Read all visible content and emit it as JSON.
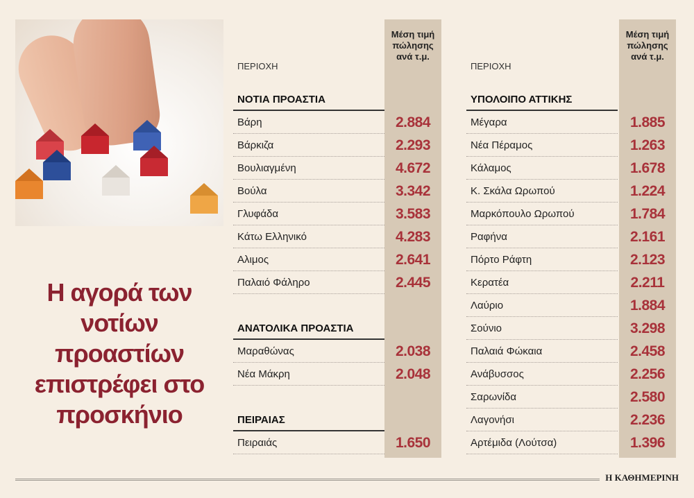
{
  "headline": "Η αγορά των νοτίων προαστίων επιστρέφει στο προσκήνιο",
  "header": {
    "area_label": "ΠΕΡΙΟΧΗ",
    "price_label_line1": "Μέση τιμή",
    "price_label_line2": "πώλησης",
    "price_label_line3": "ανά τ.μ."
  },
  "left_sections": [
    {
      "title": "ΝΟΤΙΑ ΠΡΟΑΣΤΙΑ",
      "rows": [
        {
          "name": "Βάρη",
          "price": "2.884"
        },
        {
          "name": "Βάρκιζα",
          "price": "2.293"
        },
        {
          "name": "Βουλιαγμένη",
          "price": "4.672"
        },
        {
          "name": "Βούλα",
          "price": "3.342"
        },
        {
          "name": "Γλυφάδα",
          "price": "3.583"
        },
        {
          "name": "Κάτω Ελληνικό",
          "price": "4.283"
        },
        {
          "name": "Αλιμος",
          "price": "2.641"
        },
        {
          "name": "Παλαιό Φάληρο",
          "price": "2.445"
        }
      ]
    },
    {
      "title": "ΑΝΑΤΟΛΙΚΑ ΠΡΟΑΣΤΙΑ",
      "rows": [
        {
          "name": "Μαραθώνας",
          "price": "2.038"
        },
        {
          "name": "Νέα Μάκρη",
          "price": "2.048"
        }
      ]
    },
    {
      "title": "ΠΕΙΡΑΙΑΣ",
      "rows": [
        {
          "name": "Πειραιάς",
          "price": "1.650"
        }
      ]
    }
  ],
  "right_sections": [
    {
      "title": "ΥΠΟΛΟΙΠΟ ΑΤΤΙΚΗΣ",
      "rows": [
        {
          "name": "Μέγαρα",
          "price": "1.885"
        },
        {
          "name": "Νέα Πέραμος",
          "price": "1.263"
        },
        {
          "name": "Κάλαμος",
          "price": "1.678"
        },
        {
          "name": "Κ. Σκάλα Ωρωπού",
          "price": "1.224"
        },
        {
          "name": "Μαρκόπουλο Ωρωπού",
          "price": "1.784"
        },
        {
          "name": "Ραφήνα",
          "price": "2.161"
        },
        {
          "name": "Πόρτο Ράφτη",
          "price": "2.123"
        },
        {
          "name": "Κερατέα",
          "price": "2.211"
        },
        {
          "name": "Λαύριο",
          "price": "1.884"
        },
        {
          "name": "Σούνιο",
          "price": "3.298"
        },
        {
          "name": "Παλαιά Φώκαια",
          "price": "2.458"
        },
        {
          "name": "Ανάβυσσος",
          "price": "2.256"
        },
        {
          "name": "Σαρωνίδα",
          "price": "2.580"
        },
        {
          "name": "Λαγονήσι",
          "price": "2.236"
        },
        {
          "name": "Αρτέμιδα (Λούτσα)",
          "price": "1.396"
        }
      ]
    }
  ],
  "footer": {
    "brand": "Η ΚΑΘΗΜΕΡΙΝΗ"
  },
  "colors": {
    "background": "#f6eee3",
    "price_band": "#d7c9b6",
    "price_text": "#a8323a",
    "headline_text": "#8b2230"
  }
}
